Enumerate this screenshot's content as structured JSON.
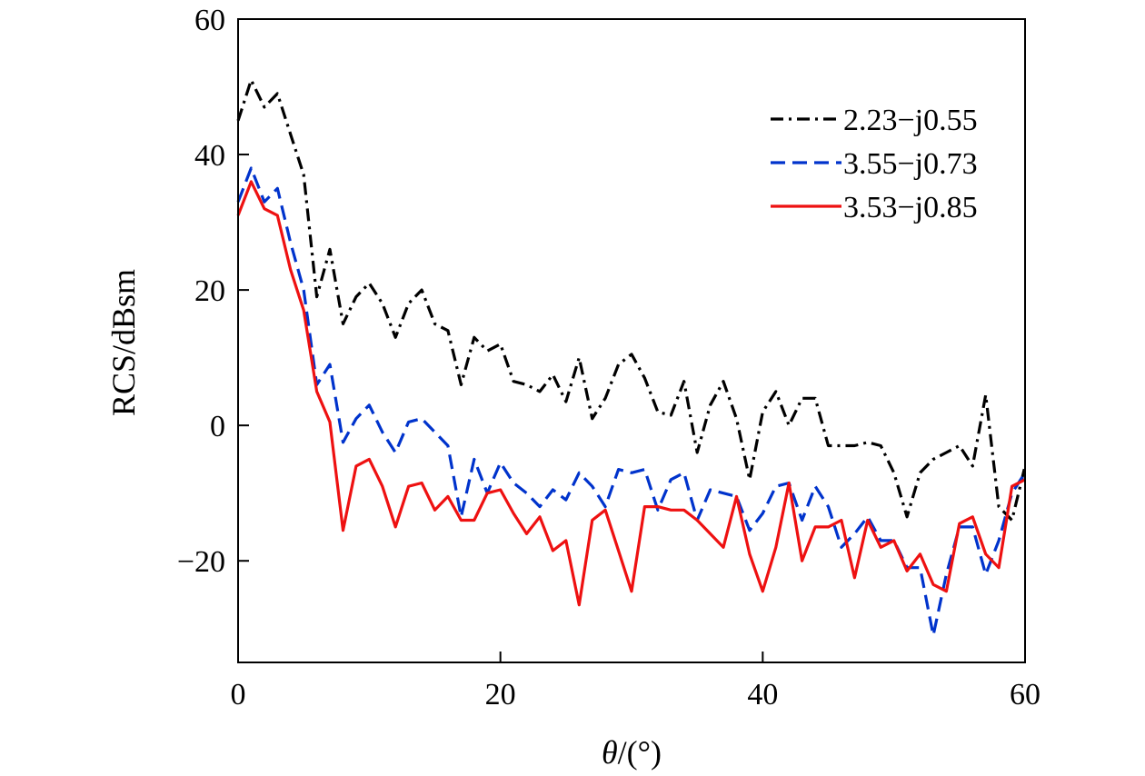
{
  "chart_data": {
    "type": "line",
    "title": "",
    "xlabel_symbol": "θ",
    "xlabel_unit": "/(°)",
    "ylabel": "RCS/dBsm",
    "xlim": [
      0,
      60
    ],
    "ylim": [
      -35,
      60
    ],
    "xticks": [
      0,
      20,
      40,
      60
    ],
    "yticks": [
      60,
      40,
      20,
      0,
      -20
    ],
    "ytick_labels": [
      "60",
      "40",
      "20",
      "0",
      "−20"
    ],
    "grid": false,
    "legend_position": "top-right",
    "series": [
      {
        "name": "2.23−j0.55",
        "color": "#000000",
        "dash": "dashdot",
        "x": [
          0,
          1,
          2,
          3,
          4,
          5,
          6,
          7,
          8,
          9,
          10,
          11,
          12,
          13,
          14,
          15,
          16,
          17,
          18,
          19,
          20,
          21,
          22,
          23,
          24,
          25,
          26,
          27,
          28,
          29,
          30,
          31,
          32,
          33,
          34,
          35,
          36,
          37,
          38,
          39,
          40,
          41,
          42,
          43,
          44,
          45,
          46,
          47,
          48,
          49,
          50,
          51,
          52,
          53,
          54,
          55,
          56,
          57,
          58,
          59,
          60
        ],
        "y": [
          45,
          51,
          47,
          49,
          43,
          37,
          19,
          26,
          15,
          19,
          21,
          18,
          13,
          18,
          20,
          15,
          14,
          6,
          13,
          11,
          12,
          6.5,
          6,
          5,
          7.5,
          3.5,
          10,
          1,
          4,
          9,
          10.5,
          7,
          2,
          1.5,
          6.5,
          -4,
          3,
          6.5,
          1,
          -8,
          2,
          5,
          0,
          4,
          4,
          -3,
          -3,
          -3,
          -2.5,
          -3,
          -7,
          -13.5,
          -7,
          -5,
          -4,
          -3,
          -6,
          4.5,
          -12,
          -14,
          -6
        ]
      },
      {
        "name": "3.55−j0.73",
        "color": "#0033cc",
        "dash": "dashed",
        "x": [
          0,
          1,
          2,
          3,
          4,
          5,
          6,
          7,
          8,
          9,
          10,
          11,
          12,
          13,
          14,
          15,
          16,
          17,
          18,
          19,
          20,
          21,
          22,
          23,
          24,
          25,
          26,
          27,
          28,
          29,
          30,
          31,
          32,
          33,
          34,
          35,
          36,
          37,
          38,
          39,
          40,
          41,
          42,
          43,
          44,
          45,
          46,
          47,
          48,
          49,
          50,
          51,
          52,
          53,
          54,
          55,
          56,
          57,
          58,
          59,
          60
        ],
        "y": [
          33,
          38,
          33,
          35,
          27,
          20,
          6,
          9,
          -2.5,
          1,
          3,
          -1,
          -4,
          0.5,
          1,
          -1,
          -3,
          -13.5,
          -5,
          -10,
          -5.5,
          -8.5,
          -10,
          -12,
          -9.5,
          -11,
          -7,
          -9,
          -12,
          -6.5,
          -7,
          -6.5,
          -12.5,
          -8,
          -7,
          -14,
          -9.5,
          -10,
          -10.5,
          -15.5,
          -13,
          -9,
          -8.5,
          -14,
          -9,
          -12,
          -18,
          -16,
          -13.5,
          -17,
          -17,
          -21,
          -21,
          -31,
          -22,
          -15,
          -15,
          -22,
          -17,
          -10,
          -7
        ]
      },
      {
        "name": "3.53−j0.85",
        "color": "#ee1111",
        "dash": "solid",
        "x": [
          0,
          1,
          2,
          3,
          4,
          5,
          6,
          7,
          8,
          9,
          10,
          11,
          12,
          13,
          14,
          15,
          16,
          17,
          18,
          19,
          20,
          21,
          22,
          23,
          24,
          25,
          26,
          27,
          28,
          29,
          30,
          31,
          32,
          33,
          34,
          35,
          36,
          37,
          38,
          39,
          40,
          41,
          42,
          43,
          44,
          45,
          46,
          47,
          48,
          49,
          50,
          51,
          52,
          53,
          54,
          55,
          56,
          57,
          58,
          59,
          60
        ],
        "y": [
          31,
          36,
          32,
          31,
          23,
          17,
          5,
          0.5,
          -15.5,
          -6,
          -5,
          -9,
          -15,
          -9,
          -8.5,
          -12.5,
          -10.5,
          -14,
          -14,
          -10,
          -9.5,
          -13,
          -16,
          -13.5,
          -18.5,
          -17,
          -26.5,
          -14,
          -12.5,
          -18.5,
          -24.5,
          -12,
          -12,
          -12.5,
          -12.5,
          -14,
          -16,
          -18,
          -10.5,
          -19,
          -24.5,
          -18,
          -8.5,
          -20,
          -15,
          -15,
          -14,
          -22.5,
          -14,
          -18,
          -17,
          -21.5,
          -19,
          -23.5,
          -24.5,
          -14.5,
          -13.5,
          -19,
          -21,
          -9,
          -8
        ]
      }
    ]
  }
}
